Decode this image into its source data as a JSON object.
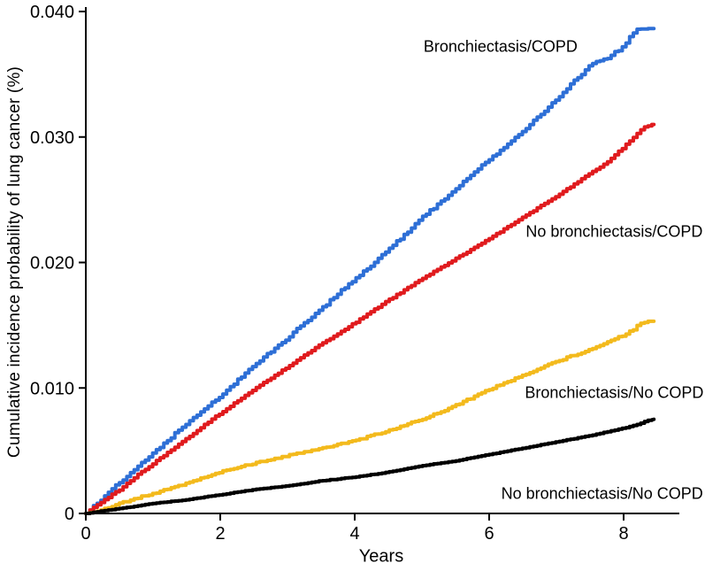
{
  "figure": {
    "background": "#ffffff",
    "axis_color": "#000000"
  },
  "chart_data": {
    "type": "line",
    "title": "",
    "xlabel": "Years",
    "ylabel": "Cumulative incidence probability of lung cancer (%)",
    "xlim": [
      0,
      8.8
    ],
    "ylim": [
      0,
      0.04
    ],
    "grid": false,
    "legend_position": "inline-annotations",
    "x_ticks": [
      {
        "value": 0,
        "label": "0"
      },
      {
        "value": 2,
        "label": "2"
      },
      {
        "value": 4,
        "label": "4"
      },
      {
        "value": 6,
        "label": "6"
      },
      {
        "value": 8,
        "label": "8"
      }
    ],
    "y_ticks": [
      {
        "value": 0,
        "label": "0"
      },
      {
        "value": 0.01,
        "label": "0.010"
      },
      {
        "value": 0.02,
        "label": "0.020"
      },
      {
        "value": 0.03,
        "label": "0.030"
      },
      {
        "value": 0.04,
        "label": "0.040"
      }
    ],
    "series": [
      {
        "name": "Bronchiectasis/COPD",
        "color": "#2e6fd6",
        "jitter": 0.00018,
        "end_value": 0.0386,
        "points": [
          [
            0,
            0
          ],
          [
            0.2,
            0.001
          ],
          [
            0.5,
            0.0025
          ],
          [
            0.75,
            0.0036
          ],
          [
            1,
            0.0048
          ],
          [
            1.25,
            0.006
          ],
          [
            1.5,
            0.0072
          ],
          [
            1.75,
            0.0083
          ],
          [
            2,
            0.0094
          ],
          [
            2.25,
            0.0106
          ],
          [
            2.5,
            0.0118
          ],
          [
            2.75,
            0.0129
          ],
          [
            3,
            0.014
          ],
          [
            3.25,
            0.0152
          ],
          [
            3.5,
            0.0163
          ],
          [
            3.75,
            0.0175
          ],
          [
            4,
            0.0187
          ],
          [
            4.25,
            0.0198
          ],
          [
            4.5,
            0.021
          ],
          [
            4.75,
            0.0223
          ],
          [
            5,
            0.0236
          ],
          [
            5.25,
            0.0247
          ],
          [
            5.5,
            0.0259
          ],
          [
            5.75,
            0.0271
          ],
          [
            6,
            0.0282
          ],
          [
            6.25,
            0.0293
          ],
          [
            6.5,
            0.0305
          ],
          [
            6.75,
            0.0317
          ],
          [
            7,
            0.033
          ],
          [
            7.25,
            0.0344
          ],
          [
            7.5,
            0.0357
          ],
          [
            7.75,
            0.0363
          ],
          [
            8,
            0.0372
          ],
          [
            8.1,
            0.0381
          ],
          [
            8.2,
            0.0385
          ],
          [
            8.45,
            0.0386
          ]
        ]
      },
      {
        "name": "No bronchiectasis/COPD",
        "color": "#e01b1e",
        "jitter": 8e-05,
        "end_value": 0.031,
        "points": [
          [
            0,
            0
          ],
          [
            0.25,
            0.001
          ],
          [
            0.5,
            0.0019
          ],
          [
            0.75,
            0.003
          ],
          [
            1,
            0.004
          ],
          [
            1.5,
            0.006
          ],
          [
            2,
            0.008
          ],
          [
            2.5,
            0.0099
          ],
          [
            3,
            0.0117
          ],
          [
            3.5,
            0.0135
          ],
          [
            4,
            0.0152
          ],
          [
            4.5,
            0.017
          ],
          [
            5,
            0.0187
          ],
          [
            5.5,
            0.0203
          ],
          [
            6,
            0.0219
          ],
          [
            6.5,
            0.0236
          ],
          [
            7,
            0.0253
          ],
          [
            7.5,
            0.0271
          ],
          [
            7.75,
            0.028
          ],
          [
            8,
            0.0292
          ],
          [
            8.15,
            0.03
          ],
          [
            8.3,
            0.0308
          ],
          [
            8.45,
            0.031
          ]
        ]
      },
      {
        "name": "Bronchiectasis/No COPD",
        "color": "#f3ba1d",
        "jitter": 0.00012,
        "end_value": 0.0153,
        "points": [
          [
            0,
            0
          ],
          [
            0.25,
            0.0003
          ],
          [
            0.5,
            0.0008
          ],
          [
            1,
            0.0016
          ],
          [
            1.5,
            0.0024
          ],
          [
            2,
            0.0033
          ],
          [
            2.5,
            0.004
          ],
          [
            3,
            0.0046
          ],
          [
            3.5,
            0.0052
          ],
          [
            4,
            0.0058
          ],
          [
            4.5,
            0.0066
          ],
          [
            5,
            0.0075
          ],
          [
            5.5,
            0.0086
          ],
          [
            6,
            0.0099
          ],
          [
            6.5,
            0.011
          ],
          [
            7,
            0.0121
          ],
          [
            7.5,
            0.0131
          ],
          [
            8,
            0.0142
          ],
          [
            8.15,
            0.0147
          ],
          [
            8.25,
            0.0152
          ],
          [
            8.45,
            0.0153
          ]
        ]
      },
      {
        "name": "No bronchiectasis/No COPD",
        "color": "#000000",
        "jitter": 3e-05,
        "end_value": 0.0075,
        "points": [
          [
            0,
            0
          ],
          [
            0.5,
            0.0004
          ],
          [
            1,
            0.0008
          ],
          [
            1.5,
            0.0011
          ],
          [
            2,
            0.0015
          ],
          [
            2.5,
            0.0019
          ],
          [
            3,
            0.0022
          ],
          [
            3.5,
            0.0026
          ],
          [
            4,
            0.0029
          ],
          [
            4.5,
            0.0033
          ],
          [
            5,
            0.0038
          ],
          [
            5.5,
            0.0042
          ],
          [
            6,
            0.0047
          ],
          [
            6.5,
            0.0052
          ],
          [
            7,
            0.0057
          ],
          [
            7.5,
            0.0062
          ],
          [
            8,
            0.0068
          ],
          [
            8.2,
            0.0071
          ],
          [
            8.35,
            0.0074
          ],
          [
            8.45,
            0.0075
          ]
        ]
      }
    ],
    "annotations": [
      {
        "text": "Bronchiectasis/COPD",
        "x_year": 6.17,
        "y_value": 0.0372
      },
      {
        "text": "No bronchiectasis/COPD",
        "x_year": 7.86,
        "y_value": 0.0224
      },
      {
        "text": "Bronchiectasis/No COPD",
        "x_year": 7.86,
        "y_value": 0.0096
      },
      {
        "text": "No bronchiectasis/No COPD",
        "x_year": 7.68,
        "y_value": 0.00155
      }
    ]
  }
}
